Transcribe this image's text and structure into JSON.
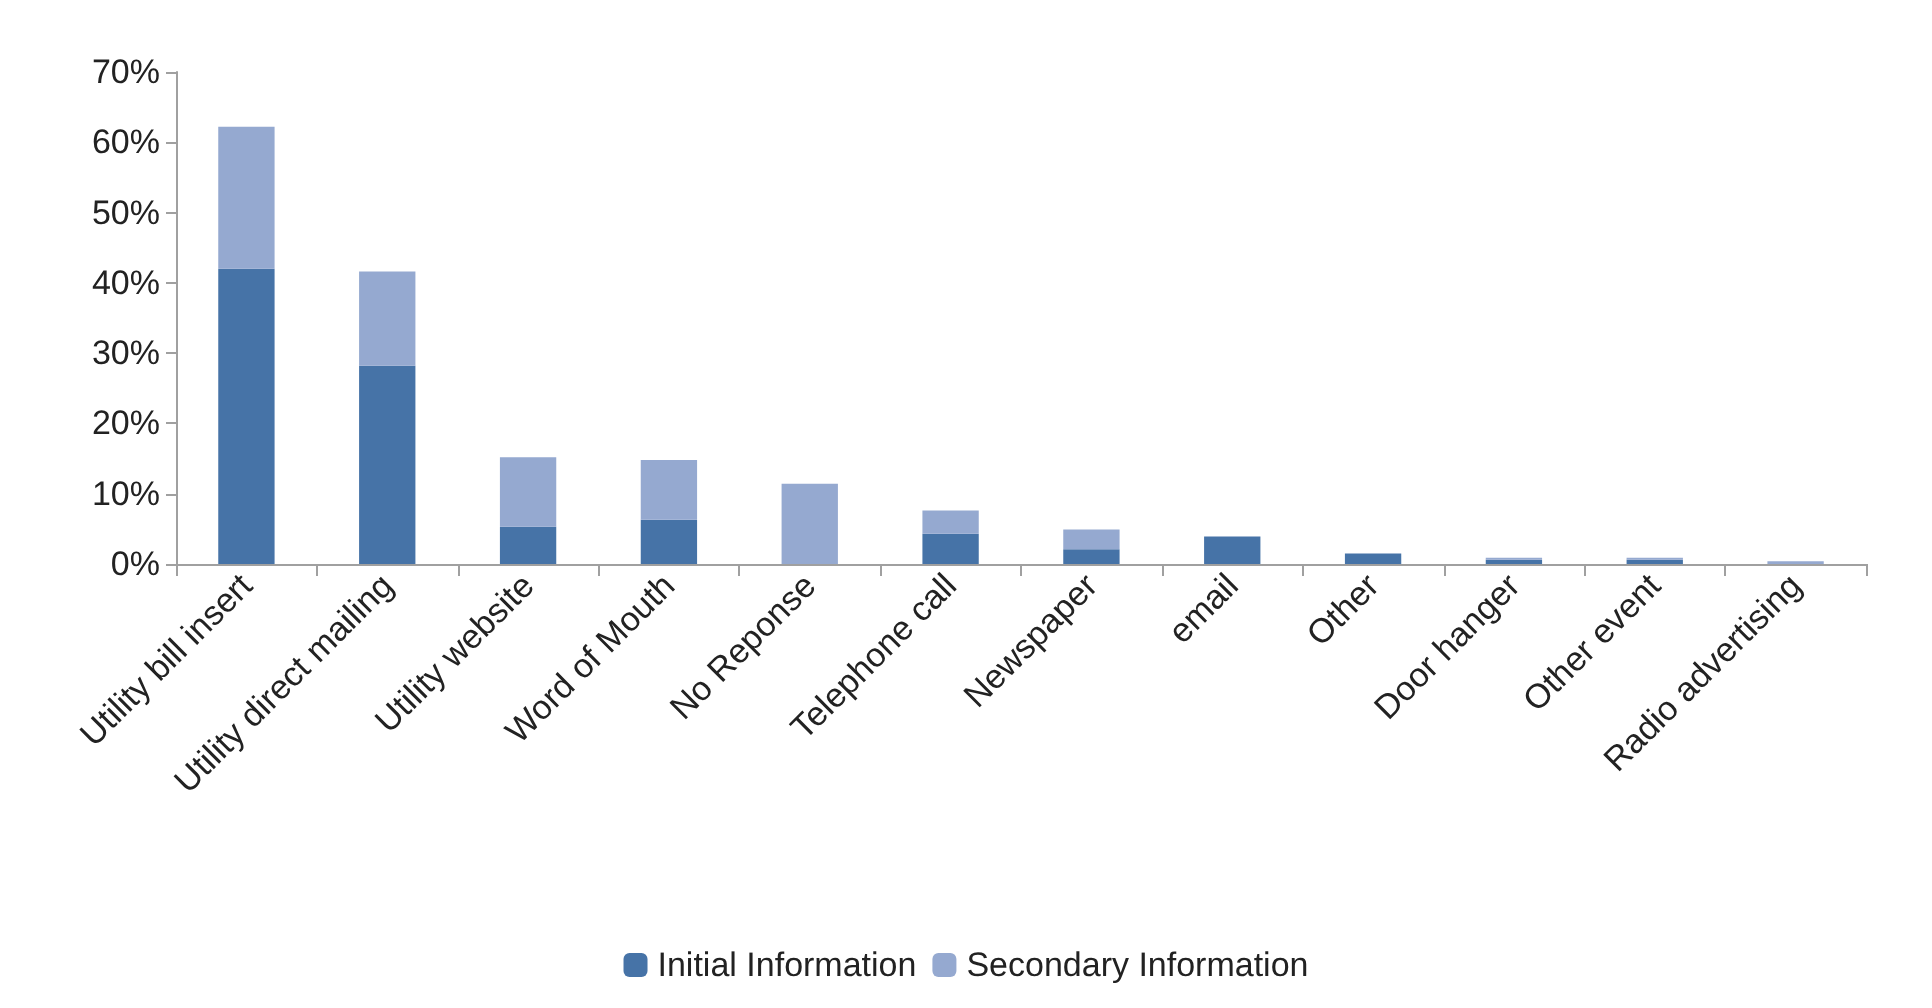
{
  "chart_data": {
    "type": "bar",
    "stacked": true,
    "categories": [
      "Utility bill insert",
      "Utility direct mailing",
      "Utility website",
      "Word of Mouth",
      "No Reponse",
      "Telephone call",
      "Newspaper",
      "email",
      "Other",
      "Door hanger",
      "Other event",
      "Radio advertising"
    ],
    "series": [
      {
        "name": "Initial Information",
        "color": "#4673a7",
        "values": [
          42,
          28.2,
          5.3,
          6.3,
          0,
          4.3,
          2.1,
          3.9,
          1.5,
          0.6,
          0.6,
          0
        ]
      },
      {
        "name": "Secondary Information",
        "color": "#95a9d0",
        "values": [
          20.2,
          13.4,
          9.9,
          8.5,
          11.4,
          3.3,
          2.8,
          0,
          0,
          0.3,
          0.3,
          0.4
        ]
      }
    ],
    "ylim": [
      0,
      70
    ],
    "yticks": [
      {
        "value": 0,
        "label": "0%"
      },
      {
        "value": 10,
        "label": "10%"
      },
      {
        "value": 20,
        "label": "20%"
      },
      {
        "value": 30,
        "label": "30%"
      },
      {
        "value": 40,
        "label": "40%"
      },
      {
        "value": 50,
        "label": "50%"
      },
      {
        "value": 60,
        "label": "60%"
      },
      {
        "value": 70,
        "label": "70%"
      }
    ],
    "grid": false,
    "legend": "bottom"
  }
}
